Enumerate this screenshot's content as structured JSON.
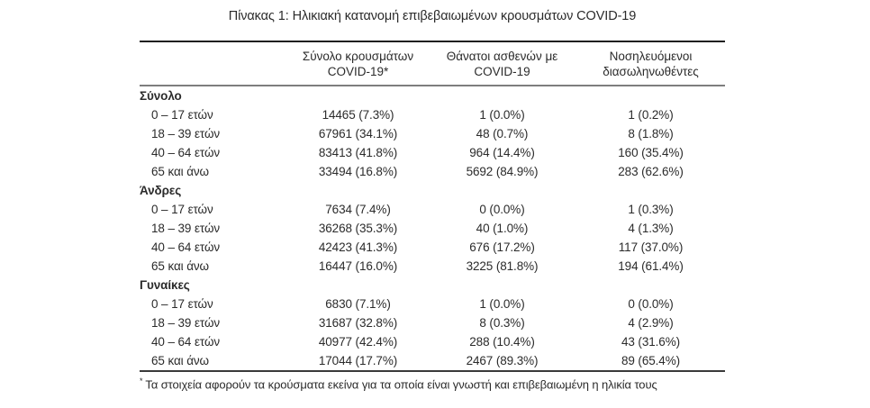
{
  "title": "Πίνακας 1: Ηλικιακή κατανομή επιβεβαιωμένων κρουσμάτων COVID-19",
  "colors": {
    "text": "#2b2b2b",
    "rule_top": "#1f1f1f",
    "rule_mid": "#7e7e7e",
    "rule_bottom": "#3a3a3a"
  },
  "table": {
    "columns": [
      {
        "line1": "Σύνολο κρουσμάτων",
        "line2": "COVID-19*"
      },
      {
        "line1": "Θάνατοι ασθενών με",
        "line2": "COVID-19"
      },
      {
        "line1": "Νοσηλευόμενοι",
        "line2": "διασωληνωθέντες"
      }
    ],
    "sections": [
      {
        "label": "Σύνολο",
        "rows": [
          {
            "label": "0 – 17 ετών",
            "values": [
              "14465 (7.3%)",
              "1 (0.0%)",
              "1 (0.2%)"
            ]
          },
          {
            "label": "18 – 39 ετών",
            "values": [
              "67961 (34.1%)",
              "48 (0.7%)",
              "8 (1.8%)"
            ]
          },
          {
            "label": "40 – 64 ετών",
            "values": [
              "83413 (41.8%)",
              "964 (14.4%)",
              "160 (35.4%)"
            ]
          },
          {
            "label": "65 και άνω",
            "values": [
              "33494 (16.8%)",
              "5692 (84.9%)",
              "283 (62.6%)"
            ]
          }
        ]
      },
      {
        "label": "Άνδρες",
        "rows": [
          {
            "label": "0 – 17 ετών",
            "values": [
              "7634 (7.4%)",
              "0 (0.0%)",
              "1 (0.3%)"
            ]
          },
          {
            "label": "18 – 39 ετών",
            "values": [
              "36268 (35.3%)",
              "40 (1.0%)",
              "4 (1.3%)"
            ]
          },
          {
            "label": "40 – 64 ετών",
            "values": [
              "42423 (41.3%)",
              "676 (17.2%)",
              "117 (37.0%)"
            ]
          },
          {
            "label": "65 και άνω",
            "values": [
              "16447 (16.0%)",
              "3225 (81.8%)",
              "194 (61.4%)"
            ]
          }
        ]
      },
      {
        "label": "Γυναίκες",
        "rows": [
          {
            "label": "0 – 17 ετών",
            "values": [
              "6830 (7.1%)",
              "1 (0.0%)",
              "0 (0.0%)"
            ]
          },
          {
            "label": "18 – 39 ετών",
            "values": [
              "31687 (32.8%)",
              "8 (0.3%)",
              "4 (2.9%)"
            ]
          },
          {
            "label": "40 – 64 ετών",
            "values": [
              "40977 (42.4%)",
              "288 (10.4%)",
              "43 (31.6%)"
            ]
          },
          {
            "label": "65 και άνω",
            "values": [
              "17044 (17.7%)",
              "2467 (89.3%)",
              "89 (65.4%)"
            ]
          }
        ]
      }
    ]
  },
  "footnote": {
    "marker": "*",
    "text": "Τα στοιχεία αφορούν τα κρούσματα εκείνα για τα οποία είναι γνωστή και επιβεβαιωμένη η ηλικία τους"
  }
}
